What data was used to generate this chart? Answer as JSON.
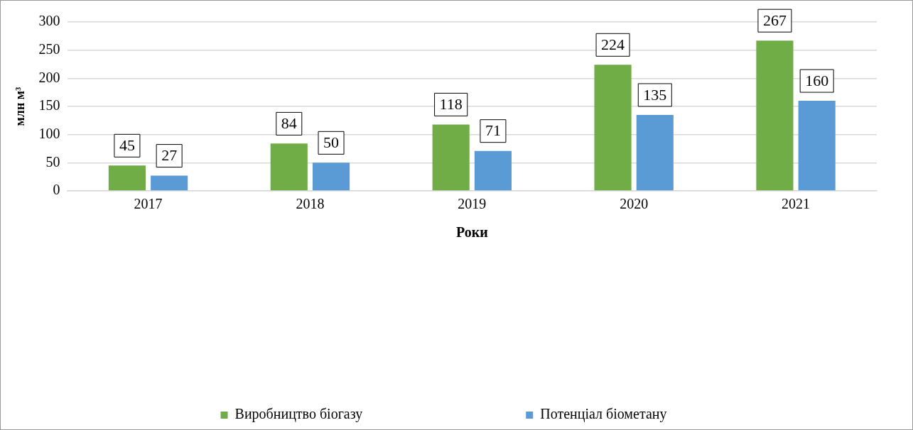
{
  "chart_data": {
    "type": "bar",
    "xlabel": "Роки",
    "ylabel": "млн м³",
    "categories": [
      "2017",
      "2018",
      "2019",
      "2020",
      "2021"
    ],
    "series": [
      {
        "name": "Виробництво біогазу",
        "color": "#70ad47",
        "values": [
          45,
          84,
          118,
          224,
          267
        ]
      },
      {
        "name": "Потенціал біометану",
        "color": "#5b9bd5",
        "values": [
          27,
          50,
          71,
          135,
          160
        ]
      }
    ],
    "ylim": [
      0,
      300
    ],
    "yticks": [
      0,
      50,
      100,
      150,
      200,
      250,
      300
    ],
    "grid": "y",
    "legend": "bottom",
    "data_labels": true
  }
}
